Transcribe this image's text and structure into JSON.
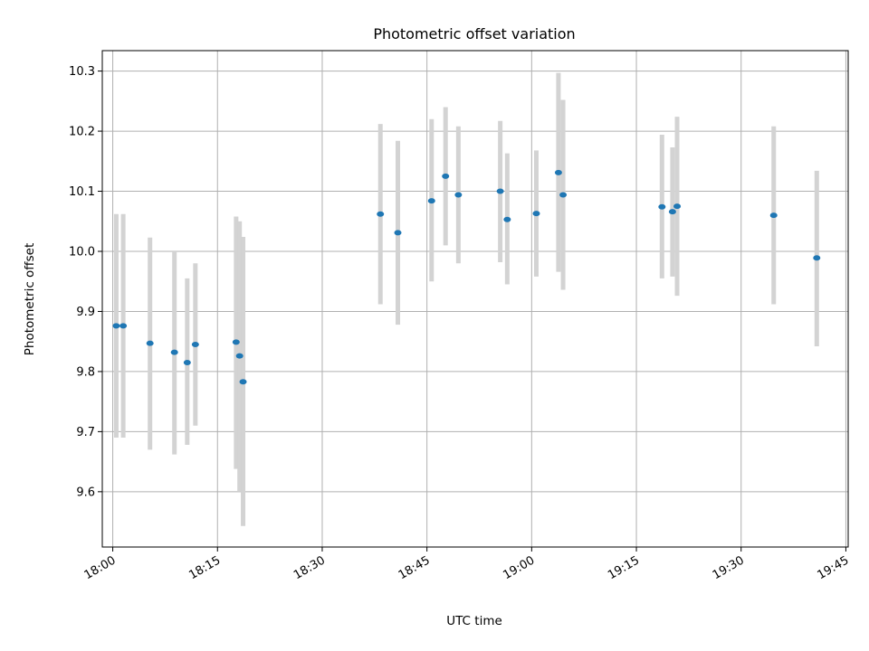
{
  "colors": {
    "point": "#1f77b4",
    "errorbar": "#d3d3d3",
    "grid": "#b0b0b0",
    "axis": "#000000"
  },
  "chart_data": {
    "type": "scatter",
    "title": "Photometric offset variation",
    "xlabel": "UTC time",
    "ylabel": "Photometric offset",
    "grid": true,
    "x_axis_type": "time",
    "xlim": [
      "17:58:30",
      "19:45:20"
    ],
    "ylim": [
      9.508,
      10.334
    ],
    "x_ticks": [
      "18:00",
      "18:15",
      "18:30",
      "18:45",
      "19:00",
      "19:15",
      "19:30",
      "19:45"
    ],
    "y_ticks": [
      9.6,
      9.7,
      9.8,
      9.9,
      10.0,
      10.1,
      10.2,
      10.3
    ],
    "y_tick_labels": [
      "9.6",
      "9.7",
      "9.8",
      "9.9",
      "10.0",
      "10.1",
      "10.2",
      "10.3"
    ],
    "points": [
      {
        "x": "18:00:30",
        "y": 9.876,
        "err_low": 9.69,
        "err_high": 10.062
      },
      {
        "x": "18:01:30",
        "y": 9.876,
        "err_low": 9.69,
        "err_high": 10.062
      },
      {
        "x": "18:05:20",
        "y": 9.847,
        "err_low": 9.67,
        "err_high": 10.023
      },
      {
        "x": "18:08:50",
        "y": 9.832,
        "err_low": 9.662,
        "err_high": 10.0
      },
      {
        "x": "18:10:40",
        "y": 9.815,
        "err_low": 9.678,
        "err_high": 9.955
      },
      {
        "x": "18:11:50",
        "y": 9.845,
        "err_low": 9.71,
        "err_high": 9.98
      },
      {
        "x": "18:17:40",
        "y": 9.849,
        "err_low": 9.638,
        "err_high": 10.058
      },
      {
        "x": "18:18:10",
        "y": 9.826,
        "err_low": 9.6,
        "err_high": 10.05
      },
      {
        "x": "18:18:40",
        "y": 9.783,
        "err_low": 9.543,
        "err_high": 10.024
      },
      {
        "x": "18:38:20",
        "y": 10.062,
        "err_low": 9.912,
        "err_high": 10.212
      },
      {
        "x": "18:40:50",
        "y": 10.031,
        "err_low": 9.878,
        "err_high": 10.184
      },
      {
        "x": "18:45:40",
        "y": 10.084,
        "err_low": 9.95,
        "err_high": 10.22
      },
      {
        "x": "18:47:40",
        "y": 10.125,
        "err_low": 10.01,
        "err_high": 10.24
      },
      {
        "x": "18:49:30",
        "y": 10.094,
        "err_low": 9.98,
        "err_high": 10.208
      },
      {
        "x": "18:55:30",
        "y": 10.1,
        "err_low": 9.982,
        "err_high": 10.217
      },
      {
        "x": "18:56:30",
        "y": 10.053,
        "err_low": 9.945,
        "err_high": 10.163
      },
      {
        "x": "19:00:40",
        "y": 10.063,
        "err_low": 9.958,
        "err_high": 10.168
      },
      {
        "x": "19:03:50",
        "y": 10.131,
        "err_low": 9.966,
        "err_high": 10.297
      },
      {
        "x": "19:04:30",
        "y": 10.094,
        "err_low": 9.936,
        "err_high": 10.252
      },
      {
        "x": "19:18:40",
        "y": 10.074,
        "err_low": 9.955,
        "err_high": 10.194
      },
      {
        "x": "19:20:10",
        "y": 10.066,
        "err_low": 9.958,
        "err_high": 10.173
      },
      {
        "x": "19:20:50",
        "y": 10.075,
        "err_low": 9.926,
        "err_high": 10.224
      },
      {
        "x": "19:34:40",
        "y": 10.06,
        "err_low": 9.912,
        "err_high": 10.208
      },
      {
        "x": "19:40:50",
        "y": 9.989,
        "err_low": 9.842,
        "err_high": 10.134
      }
    ]
  }
}
